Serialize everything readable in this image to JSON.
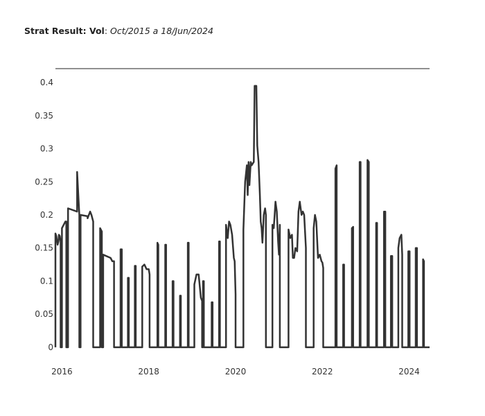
{
  "title": {
    "bold": "Strat Result: Vol",
    "sep": ":",
    "range": "Oct/2015 a 18/Jun/2024"
  },
  "chart_data": {
    "type": "line",
    "title": "Strat Result: Vol: Oct/2015 a 18/Jun/2024",
    "xlabel": "",
    "ylabel": "",
    "xlim": [
      2015.85,
      2024.47
    ],
    "ylim": [
      -0.02,
      0.42
    ],
    "x_ticks": [
      2016,
      2018,
      2020,
      2022,
      2024
    ],
    "x_tick_labels": [
      "2016",
      "2018",
      "2020",
      "2022",
      "2024"
    ],
    "y_ticks": [
      0,
      0.05,
      0.1,
      0.15,
      0.2,
      0.25,
      0.3,
      0.35,
      0.4
    ],
    "y_tick_labels": [
      "0",
      "0.05",
      "0.1",
      "0.15",
      "0.2",
      "0.25",
      "0.3",
      "0.35",
      "0.4"
    ],
    "grid": false,
    "line_color": "#333333",
    "series": [
      {
        "x": [
          2015.85,
          2015.85,
          2015.87,
          2015.9,
          2015.92,
          2015.93,
          2015.95,
          2015.97,
          2015.97,
          2016.0,
          2016.0,
          2016.08,
          2016.1,
          2016.1,
          2016.14,
          2016.14,
          2016.35,
          2016.35,
          2016.4,
          2016.4,
          2016.43,
          2016.43,
          2016.59,
          2016.59,
          2016.65,
          2016.68,
          2016.72,
          2016.72,
          2016.88,
          2016.88,
          2016.92,
          2016.92,
          2016.95,
          2016.95,
          2017.12,
          2017.12,
          2017.16,
          2017.2,
          2017.2,
          2017.35,
          2017.35,
          2017.38,
          2017.38,
          2017.52,
          2017.52,
          2017.54,
          2017.54,
          2017.68,
          2017.68,
          2017.7,
          2017.7,
          2017.85,
          2017.85,
          2017.9,
          2017.95,
          2018.0,
          2018.02,
          2018.02,
          2018.2,
          2018.2,
          2018.22,
          2018.22,
          2018.38,
          2018.38,
          2018.4,
          2018.4,
          2018.55,
          2018.55,
          2018.57,
          2018.57,
          2018.72,
          2018.72,
          2018.74,
          2018.74,
          2018.9,
          2018.9,
          2018.92,
          2018.92,
          2019.05,
          2019.05,
          2019.1,
          2019.15,
          2019.2,
          2019.23,
          2019.23,
          2019.25,
          2019.25,
          2019.27,
          2019.27,
          2019.45,
          2019.45,
          2019.47,
          2019.47,
          2019.62,
          2019.62,
          2019.64,
          2019.64,
          2019.78,
          2019.78,
          2019.82,
          2019.85,
          2019.88,
          2019.92,
          2019.96,
          2019.98,
          2020.0,
          2020.0,
          2020.18,
          2020.18,
          2020.22,
          2020.26,
          2020.28,
          2020.3,
          2020.32,
          2020.35,
          2020.37,
          2020.42,
          2020.44,
          2020.48,
          2020.5,
          2020.53,
          2020.56,
          2020.58,
          2020.6,
          2020.62,
          2020.65,
          2020.68,
          2020.7,
          2020.7,
          2020.85,
          2020.85,
          2020.88,
          2020.9,
          2020.92,
          2020.95,
          2020.98,
          2021.0,
          2021.02,
          2021.02,
          2021.22,
          2021.22,
          2021.26,
          2021.3,
          2021.32,
          2021.35,
          2021.38,
          2021.42,
          2021.45,
          2021.48,
          2021.52,
          2021.55,
          2021.58,
          2021.62,
          2021.62,
          2021.8,
          2021.8,
          2021.83,
          2021.86,
          2021.9,
          2021.94,
          2021.98,
          2022.0,
          2022.02,
          2022.02,
          2022.3,
          2022.3,
          2022.33,
          2022.33,
          2022.48,
          2022.48,
          2022.5,
          2022.5,
          2022.68,
          2022.68,
          2022.71,
          2022.71,
          2022.86,
          2022.86,
          2022.88,
          2022.88,
          2023.04,
          2023.04,
          2023.07,
          2023.07,
          2023.24,
          2023.24,
          2023.26,
          2023.26,
          2023.42,
          2023.42,
          2023.45,
          2023.45,
          2023.58,
          2023.58,
          2023.61,
          2023.61,
          2023.75,
          2023.75,
          2023.78,
          2023.82,
          2023.84,
          2023.84,
          2023.98,
          2023.98,
          2024.01,
          2024.01,
          2024.15,
          2024.15,
          2024.18,
          2024.18,
          2024.32,
          2024.32,
          2024.34,
          2024.34,
          2024.47
        ],
        "y": [
          0.0,
          0.172,
          0.168,
          0.155,
          0.16,
          0.17,
          0.168,
          0.16,
          0.0,
          0.0,
          0.18,
          0.19,
          0.19,
          0.0,
          0.0,
          0.21,
          0.205,
          0.265,
          0.2,
          0.0,
          0.0,
          0.2,
          0.198,
          0.195,
          0.205,
          0.2,
          0.19,
          0.0,
          0.0,
          0.18,
          0.175,
          0.0,
          0.0,
          0.14,
          0.135,
          0.135,
          0.13,
          0.13,
          0.0,
          0.0,
          0.148,
          0.148,
          0.0,
          0.0,
          0.105,
          0.105,
          0.0,
          0.0,
          0.123,
          0.123,
          0.0,
          0.0,
          0.122,
          0.125,
          0.118,
          0.118,
          0.11,
          0.0,
          0.0,
          0.158,
          0.155,
          0.0,
          0.0,
          0.155,
          0.155,
          0.0,
          0.0,
          0.1,
          0.1,
          0.0,
          0.0,
          0.078,
          0.078,
          0.0,
          0.0,
          0.158,
          0.158,
          0.0,
          0.0,
          0.095,
          0.11,
          0.11,
          0.075,
          0.07,
          0.0,
          0.0,
          0.1,
          0.1,
          0.0,
          0.0,
          0.068,
          0.068,
          0.0,
          0.0,
          0.16,
          0.16,
          0.0,
          0.0,
          0.185,
          0.165,
          0.19,
          0.185,
          0.17,
          0.135,
          0.13,
          0.08,
          0.0,
          0.0,
          0.178,
          0.25,
          0.275,
          0.23,
          0.28,
          0.245,
          0.28,
          0.275,
          0.28,
          0.395,
          0.395,
          0.305,
          0.28,
          0.23,
          0.19,
          0.18,
          0.158,
          0.2,
          0.21,
          0.2,
          0.0,
          0.0,
          0.185,
          0.18,
          0.2,
          0.22,
          0.205,
          0.16,
          0.14,
          0.185,
          0.0,
          0.0,
          0.178,
          0.165,
          0.17,
          0.135,
          0.135,
          0.15,
          0.145,
          0.205,
          0.22,
          0.2,
          0.205,
          0.2,
          0.15,
          0.0,
          0.0,
          0.18,
          0.2,
          0.19,
          0.135,
          0.14,
          0.13,
          0.128,
          0.12,
          0.0,
          0.0,
          0.27,
          0.275,
          0.0,
          0.0,
          0.125,
          0.125,
          0.0,
          0.0,
          0.18,
          0.182,
          0.0,
          0.0,
          0.28,
          0.28,
          0.0,
          0.0,
          0.283,
          0.28,
          0.0,
          0.0,
          0.188,
          0.188,
          0.0,
          0.0,
          0.205,
          0.205,
          0.0,
          0.0,
          0.138,
          0.138,
          0.0,
          0.0,
          0.15,
          0.165,
          0.17,
          0.14,
          0.0,
          0.0,
          0.145,
          0.145,
          0.0,
          0.0,
          0.15,
          0.15,
          0.0,
          0.0,
          0.133,
          0.13,
          0.0,
          0.0
        ]
      }
    ]
  }
}
